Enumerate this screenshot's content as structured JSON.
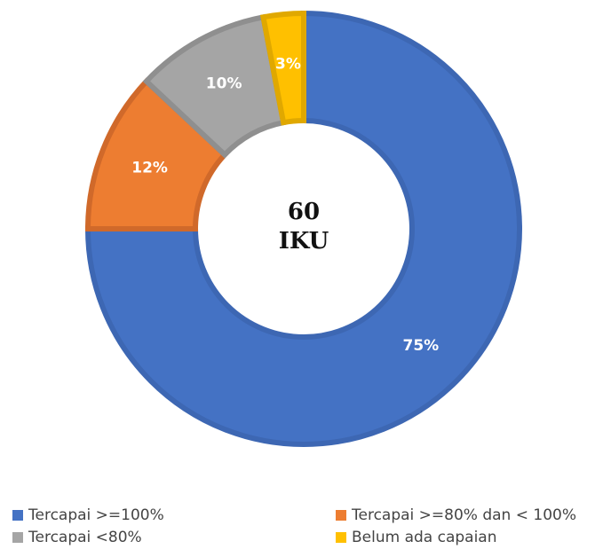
{
  "chart_data": {
    "type": "donut",
    "center_label": [
      "60",
      "IKU"
    ],
    "categories": [
      "Tercapai >=100%",
      "Tercapai >=80% dan < 100%",
      "Tercapai <80%",
      "Belum ada capaian"
    ],
    "values": [
      75,
      12,
      10,
      3
    ],
    "value_labels": [
      "75%",
      "12%",
      "10%",
      "3%"
    ],
    "colors": [
      "#4472c4",
      "#ed7d31",
      "#a5a5a5",
      "#ffc000"
    ],
    "borders": [
      "#3d67b3",
      "#d0692a",
      "#8f8f8f",
      "#e0a800"
    ],
    "legend": "bottom"
  }
}
